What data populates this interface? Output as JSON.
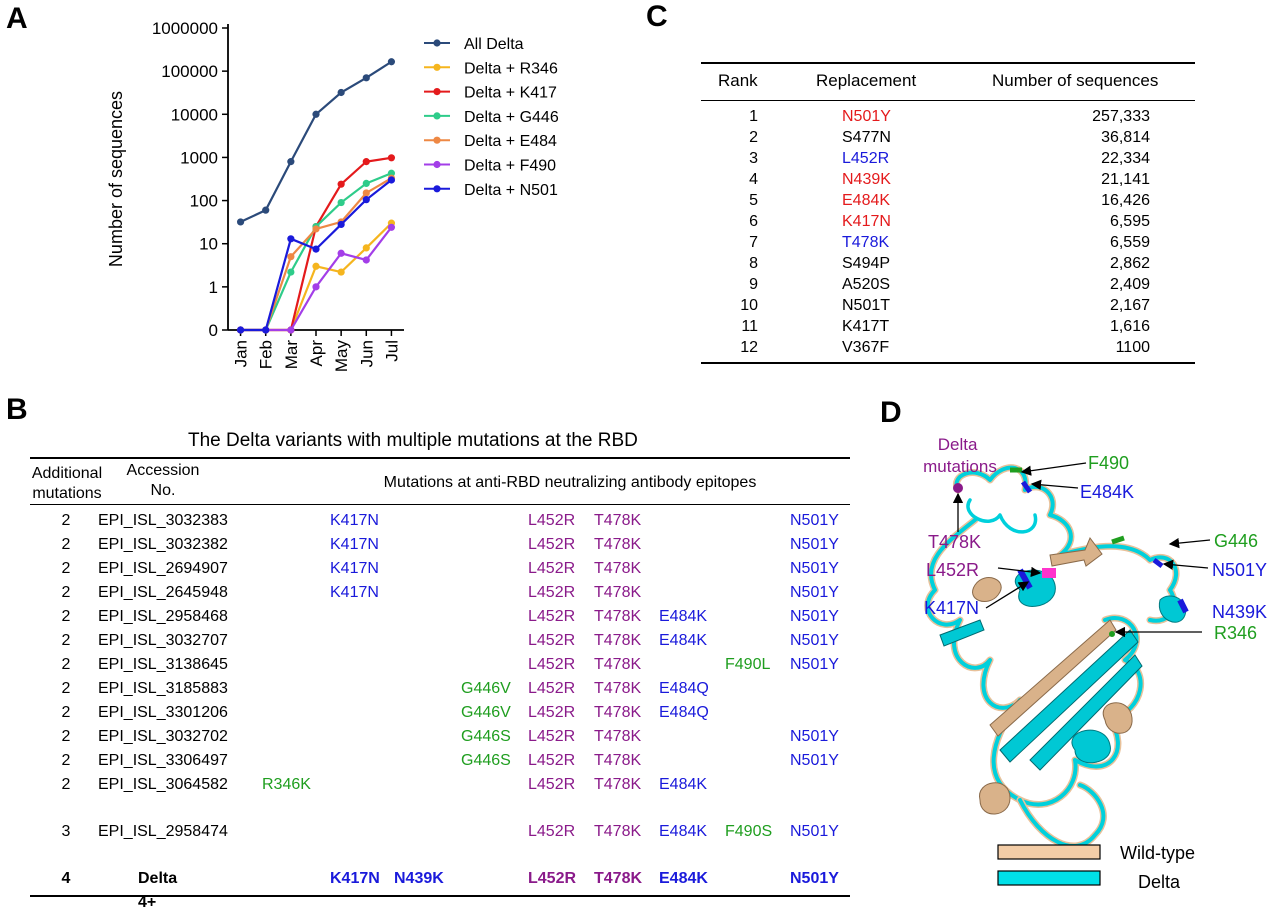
{
  "panels": {
    "a": "A",
    "b": "B",
    "c": "C",
    "d": "D"
  },
  "colors": {
    "blue": "#1a1adb",
    "purple": "#8a1a8a",
    "green": "#1f9e1f",
    "red": "#e41a1c",
    "wildtype": "#f3cda7",
    "delta": "#00e0e8"
  },
  "chart_data": {
    "type": "line",
    "x": [
      "Jan",
      "Feb",
      "Mar",
      "Apr",
      "May",
      "Jun",
      "Jul"
    ],
    "ylabel": "Number of sequences",
    "yscale": "log",
    "y_ticks": [
      "0",
      "1",
      "10",
      "100",
      "1000",
      "10000",
      "100000",
      "1000000"
    ],
    "legend_position": "top-right",
    "series": [
      {
        "name": "All Delta",
        "color": "#2b4a7a",
        "values": [
          32,
          60,
          800,
          10000,
          32000,
          70000,
          165000
        ]
      },
      {
        "name": "Delta + R346",
        "color": "#f5b51e",
        "values": [
          0,
          0,
          0,
          3,
          2.2,
          8,
          30
        ]
      },
      {
        "name": "Delta + K417",
        "color": "#e41a1c",
        "values": [
          0,
          0,
          0,
          25,
          240,
          800,
          980
        ]
      },
      {
        "name": "Delta + G446",
        "color": "#2ecc8a",
        "values": [
          0,
          0,
          2.2,
          25,
          90,
          250,
          430
        ]
      },
      {
        "name": "Delta + E484",
        "color": "#ee8844",
        "values": [
          0,
          0,
          5,
          22,
          32,
          150,
          330
        ]
      },
      {
        "name": "Delta + F490",
        "color": "#a33ee8",
        "values": [
          0,
          0,
          0,
          1,
          6,
          4.2,
          24
        ]
      },
      {
        "name": "Delta + N501",
        "color": "#1a1adb",
        "values": [
          0,
          0,
          13,
          7.5,
          28,
          105,
          300
        ]
      }
    ]
  },
  "table_c": {
    "headers": [
      "Rank",
      "Replacement",
      "Number of sequences"
    ],
    "rows": [
      {
        "rank": "1",
        "replacement": "N501Y",
        "count": "257,333",
        "color": "#e41a1c"
      },
      {
        "rank": "2",
        "replacement": "S477N",
        "count": "36,814",
        "color": "#000000"
      },
      {
        "rank": "3",
        "replacement": "L452R",
        "count": "22,334",
        "color": "#1a1adb"
      },
      {
        "rank": "4",
        "replacement": "N439K",
        "count": "21,141",
        "color": "#e41a1c"
      },
      {
        "rank": "5",
        "replacement": "E484K",
        "count": "16,426",
        "color": "#e41a1c"
      },
      {
        "rank": "6",
        "replacement": "K417N",
        "count": "6,595",
        "color": "#e41a1c"
      },
      {
        "rank": "7",
        "replacement": "T478K",
        "count": "6,559",
        "color": "#1a1adb"
      },
      {
        "rank": "8",
        "replacement": "S494P",
        "count": "2,862",
        "color": "#000000"
      },
      {
        "rank": "9",
        "replacement": "A520S",
        "count": "2,409",
        "color": "#000000"
      },
      {
        "rank": "10",
        "replacement": "N501T",
        "count": "2,167",
        "color": "#000000"
      },
      {
        "rank": "11",
        "replacement": "K417T",
        "count": "1,616",
        "color": "#000000"
      },
      {
        "rank": "12",
        "replacement": "V367F",
        "count": "1100",
        "color": "#000000"
      }
    ]
  },
  "table_b": {
    "title": "The Delta variants with multiple mutations at the RBD",
    "headers": {
      "additional": "Additional\nmutations",
      "accession": "Accession\nNo.",
      "mutations": "Mutations at anti-RBD neutralizing antibody epitopes"
    },
    "rows": [
      {
        "n": "2",
        "acc": "EPI_ISL_3032383",
        "r346": "",
        "k417": "K417N",
        "n439": "",
        "g446": "",
        "l452": "L452R",
        "t478": "T478K",
        "e484": "",
        "f490": "",
        "n501": "N501Y"
      },
      {
        "n": "2",
        "acc": "EPI_ISL_3032382",
        "r346": "",
        "k417": "K417N",
        "n439": "",
        "g446": "",
        "l452": "L452R",
        "t478": "T478K",
        "e484": "",
        "f490": "",
        "n501": "N501Y"
      },
      {
        "n": "2",
        "acc": "EPI_ISL_2694907",
        "r346": "",
        "k417": "K417N",
        "n439": "",
        "g446": "",
        "l452": "L452R",
        "t478": "T478K",
        "e484": "",
        "f490": "",
        "n501": "N501Y"
      },
      {
        "n": "2",
        "acc": "EPI_ISL_2645948",
        "r346": "",
        "k417": "K417N",
        "n439": "",
        "g446": "",
        "l452": "L452R",
        "t478": "T478K",
        "e484": "",
        "f490": "",
        "n501": "N501Y"
      },
      {
        "n": "2",
        "acc": "EPI_ISL_2958468",
        "r346": "",
        "k417": "",
        "n439": "",
        "g446": "",
        "l452": "L452R",
        "t478": "T478K",
        "e484": "E484K",
        "f490": "",
        "n501": "N501Y"
      },
      {
        "n": "2",
        "acc": "EPI_ISL_3032707",
        "r346": "",
        "k417": "",
        "n439": "",
        "g446": "",
        "l452": "L452R",
        "t478": "T478K",
        "e484": "E484K",
        "f490": "",
        "n501": "N501Y"
      },
      {
        "n": "2",
        "acc": "EPI_ISL_3138645",
        "r346": "",
        "k417": "",
        "n439": "",
        "g446": "",
        "l452": "L452R",
        "t478": "T478K",
        "e484": "",
        "f490": "F490L",
        "n501": "N501Y"
      },
      {
        "n": "2",
        "acc": "EPI_ISL_3185883",
        "r346": "",
        "k417": "",
        "n439": "",
        "g446": "G446V",
        "l452": "L452R",
        "t478": "T478K",
        "e484": "E484Q",
        "f490": "",
        "n501": ""
      },
      {
        "n": "2",
        "acc": "EPI_ISL_3301206",
        "r346": "",
        "k417": "",
        "n439": "",
        "g446": "G446V",
        "l452": "L452R",
        "t478": "T478K",
        "e484": "E484Q",
        "f490": "",
        "n501": ""
      },
      {
        "n": "2",
        "acc": "EPI_ISL_3032702",
        "r346": "",
        "k417": "",
        "n439": "",
        "g446": "G446S",
        "l452": "L452R",
        "t478": "T478K",
        "e484": "",
        "f490": "",
        "n501": "N501Y"
      },
      {
        "n": "2",
        "acc": "EPI_ISL_3306497",
        "r346": "",
        "k417": "",
        "n439": "",
        "g446": "G446S",
        "l452": "L452R",
        "t478": "T478K",
        "e484": "",
        "f490": "",
        "n501": "N501Y"
      },
      {
        "n": "2",
        "acc": "EPI_ISL_3064582",
        "r346": "R346K",
        "k417": "",
        "n439": "",
        "g446": "",
        "l452": "L452R",
        "t478": "T478K",
        "e484": "E484K",
        "f490": "",
        "n501": ""
      },
      {
        "n": "3",
        "acc": "EPI_ISL_2958474",
        "r346": "",
        "k417": "",
        "n439": "",
        "g446": "",
        "l452": "L452R",
        "t478": "T478K",
        "e484": "E484K",
        "f490": "F490S",
        "n501": "N501Y"
      },
      {
        "n": "4",
        "acc": "Delta 4+",
        "r346": "",
        "k417": "K417N",
        "n439": "N439K",
        "g446": "",
        "l452": "L452R",
        "t478": "T478K",
        "e484": "E484K",
        "f490": "",
        "n501": "N501Y"
      }
    ]
  },
  "structure_d": {
    "delta_mutations_label": "Delta\nmutations",
    "labels": {
      "f490": "F490",
      "e484k": "E484K",
      "g446": "G446",
      "n501y": "N501Y",
      "t478k": "T478K",
      "l452r": "L452R",
      "k417n": "K417N",
      "n439k": "N439K",
      "r346": "R346"
    },
    "legend": {
      "wildtype": "Wild-type",
      "delta": "Delta"
    }
  }
}
